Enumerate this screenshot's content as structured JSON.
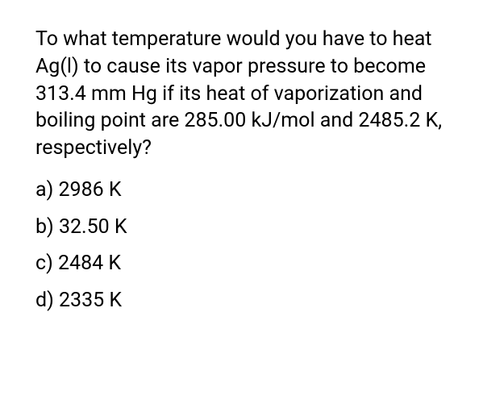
{
  "question": {
    "text": "To what temperature would you have to heat Ag(l) to cause its vapor pressure to become 313.4 mm Hg if its heat of vaporization and boiling point are 285.00 kJ/mol and 2485.2 K, respectively?",
    "font_size": 25,
    "color": "#000000"
  },
  "options": [
    {
      "label": "a) 2986 K"
    },
    {
      "label": "b) 32.50 K"
    },
    {
      "label": "c) 2484 K"
    },
    {
      "label": "d) 2335 K"
    }
  ],
  "styling": {
    "background_color": "#ffffff",
    "text_color": "#000000",
    "font_size": 25,
    "line_height": 1.35
  }
}
